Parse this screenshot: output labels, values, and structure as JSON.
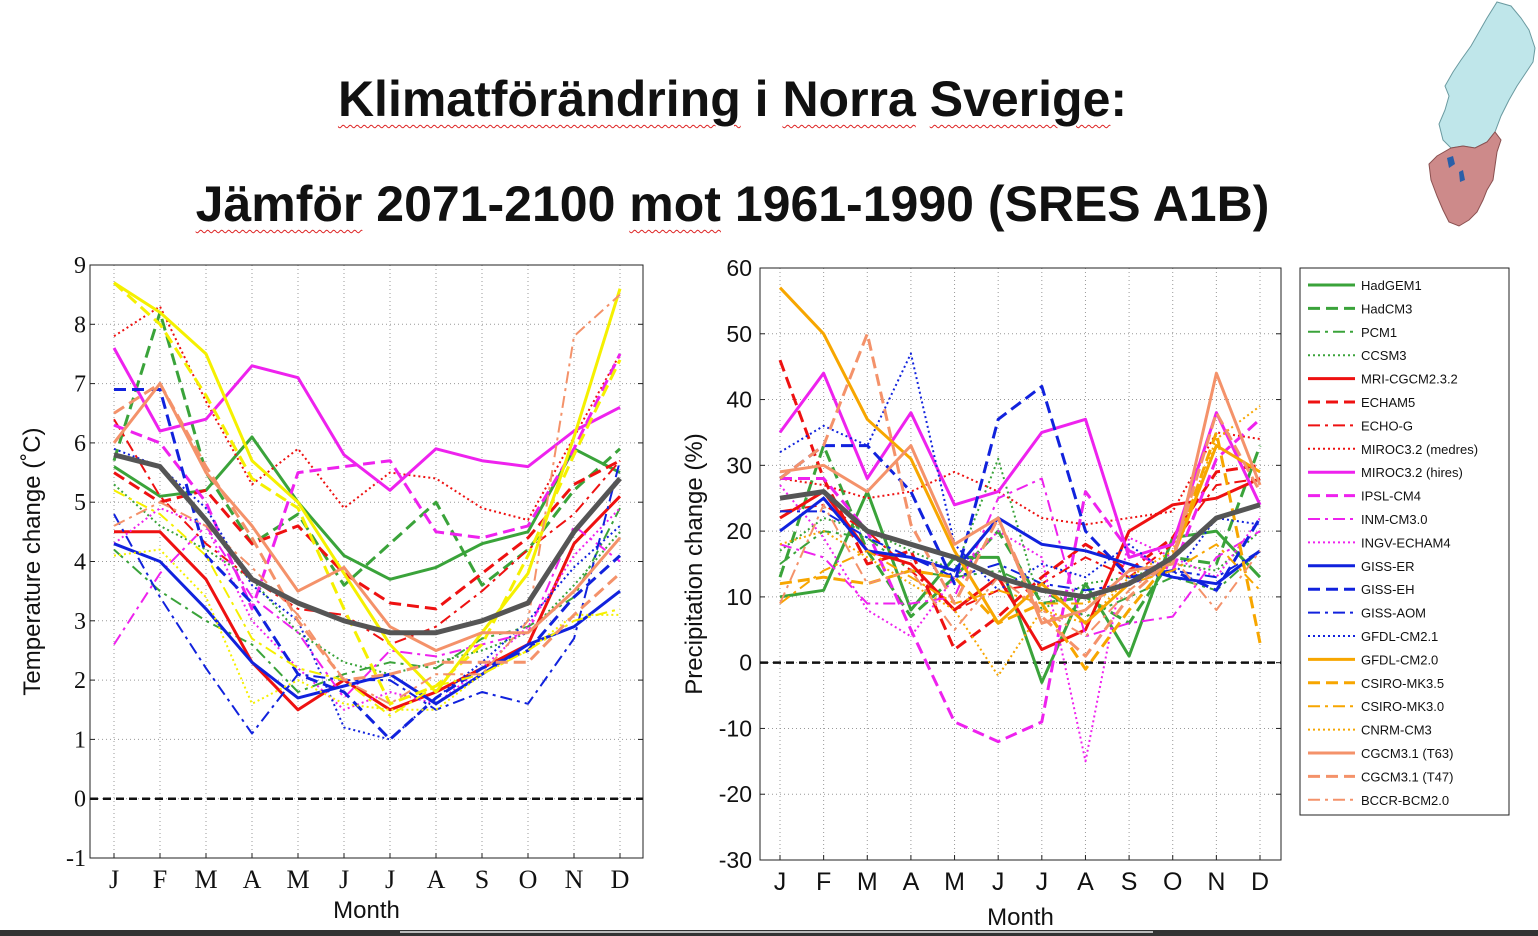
{
  "title": {
    "line1_parts": [
      "Klimatförändring",
      " i ",
      "Norra",
      " ",
      "Sverige",
      ":"
    ],
    "line2_parts": [
      "Jämför",
      " 2071-2100 ",
      "mot",
      " 1961-1990 (SRES A1B)"
    ]
  },
  "colors": {
    "HadGEM1": "#3aa33a",
    "red": "#ee1111",
    "magenta": "#ee22ee",
    "blue": "#1122dd",
    "orange": "#f7a600",
    "salmon": "#f4926a",
    "yellow": "#f5f000",
    "gray": "#555555",
    "map_north": "#bfe6ea",
    "map_south": "#cd8a8a"
  },
  "chart_data": [
    {
      "type": "line",
      "xlabel": "Month",
      "ylabel": "Temperature change (˚C)",
      "categories": [
        "J",
        "F",
        "M",
        "A",
        "M",
        "J",
        "J",
        "A",
        "S",
        "O",
        "N",
        "D"
      ],
      "ylim": [
        -1,
        9
      ],
      "yticks": [
        "-1",
        "0",
        "1",
        "2",
        "3",
        "4",
        "5",
        "6",
        "7",
        "8",
        "9"
      ],
      "grid": true,
      "reference_line": 0,
      "series": [
        {
          "name": "HadGEM1",
          "color": "#3aa33a",
          "dash": "solid",
          "width": 3,
          "values": [
            5.6,
            5.1,
            5.2,
            6.1,
            5.0,
            4.1,
            3.7,
            3.9,
            4.3,
            4.5,
            5.9,
            5.5
          ]
        },
        {
          "name": "HadCM3",
          "color": "#3aa33a",
          "dash": "dashed",
          "width": 3,
          "values": [
            5.7,
            8.2,
            5.5,
            4.3,
            4.8,
            3.6,
            4.3,
            5.0,
            3.6,
            4.2,
            5.2,
            5.9
          ]
        },
        {
          "name": "PCM1",
          "color": "#3aa33a",
          "dash": "dashdot",
          "width": 2,
          "values": [
            4.2,
            3.5,
            3.0,
            2.6,
            1.8,
            2.1,
            2.3,
            2.2,
            2.7,
            2.9,
            3.4,
            4.9
          ]
        },
        {
          "name": "CCSM3",
          "color": "#3aa33a",
          "dash": "dotted",
          "width": 2,
          "values": [
            5.3,
            4.6,
            4.2,
            3.7,
            2.8,
            2.3,
            2.1,
            2.3,
            2.5,
            2.8,
            3.6,
            4.5
          ]
        },
        {
          "name": "MRI-CGCM2.3.2",
          "color": "#ee1111",
          "dash": "solid",
          "width": 3,
          "values": [
            4.5,
            4.5,
            3.7,
            2.3,
            1.5,
            2.0,
            1.5,
            1.8,
            2.2,
            2.6,
            4.3,
            5.1
          ]
        },
        {
          "name": "ECHAM5",
          "color": "#ee1111",
          "dash": "dashed",
          "width": 3,
          "values": [
            5.5,
            5.0,
            5.2,
            4.3,
            4.6,
            3.8,
            3.3,
            3.2,
            3.8,
            4.4,
            5.3,
            5.7
          ]
        },
        {
          "name": "ECHO-G",
          "color": "#ee1111",
          "dash": "dashdot",
          "width": 2,
          "values": [
            6.4,
            5.1,
            4.3,
            3.7,
            3.2,
            3.1,
            2.6,
            2.9,
            3.5,
            4.2,
            4.8,
            5.7
          ]
        },
        {
          "name": "MIROC3.2 (medres)",
          "color": "#ee1111",
          "dash": "dotted",
          "width": 2,
          "values": [
            7.8,
            8.3,
            6.7,
            5.3,
            5.9,
            4.9,
            5.5,
            5.4,
            4.9,
            4.7,
            6.1,
            7.5
          ]
        },
        {
          "name": "MIROC3.2 (hires)",
          "color": "#ee22ee",
          "dash": "solid",
          "width": 3,
          "values": [
            7.6,
            6.2,
            6.4,
            7.3,
            7.1,
            5.8,
            5.2,
            5.9,
            5.7,
            5.6,
            6.2,
            6.6
          ]
        },
        {
          "name": "IPSL-CM4",
          "color": "#ee22ee",
          "dash": "dashed",
          "width": 3,
          "values": [
            6.3,
            6.0,
            5.0,
            3.2,
            5.5,
            5.6,
            5.7,
            4.5,
            4.4,
            4.6,
            5.9,
            7.5
          ]
        },
        {
          "name": "INM-CM3.0",
          "color": "#ee22ee",
          "dash": "dashdot",
          "width": 2,
          "values": [
            2.6,
            3.8,
            4.6,
            3.4,
            2.8,
            1.7,
            2.5,
            2.4,
            2.6,
            2.8,
            4.6,
            4.0
          ]
        },
        {
          "name": "INGV-ECHAM4",
          "color": "#ee22ee",
          "dash": "dotted",
          "width": 2,
          "values": [
            4.3,
            4.9,
            4.6,
            3.0,
            2.2,
            1.5,
            1.8,
            1.6,
            2.2,
            2.9,
            4.1,
            4.9
          ]
        },
        {
          "name": "GISS-ER",
          "color": "#1122dd",
          "dash": "solid",
          "width": 3,
          "values": [
            4.3,
            4.0,
            3.2,
            2.3,
            1.7,
            1.9,
            2.1,
            1.6,
            2.1,
            2.6,
            2.9,
            3.5
          ]
        },
        {
          "name": "GISS-EH",
          "color": "#1122dd",
          "dash": "dashed",
          "width": 3,
          "values": [
            6.9,
            6.9,
            4.1,
            3.3,
            2.1,
            1.8,
            1.0,
            1.7,
            2.2,
            2.5,
            3.4,
            4.1
          ]
        },
        {
          "name": "GISS-AOM",
          "color": "#1122dd",
          "dash": "dashdot",
          "width": 2,
          "values": [
            4.8,
            3.4,
            2.2,
            1.1,
            2.1,
            2.0,
            2.0,
            1.5,
            1.8,
            1.6,
            2.7,
            5.7
          ]
        },
        {
          "name": "GFDL-CM2.1",
          "color": "#1122dd",
          "dash": "dotted",
          "width": 2,
          "values": [
            5.9,
            5.6,
            4.9,
            3.6,
            3.0,
            1.2,
            1.0,
            1.7,
            2.3,
            3.0,
            3.9,
            4.6
          ]
        },
        {
          "name": "GFDL-CM2.0",
          "color": "#f5f000",
          "dash": "solid",
          "width": 3,
          "values": [
            8.7,
            8.2,
            7.5,
            5.7,
            5.0,
            3.8,
            2.6,
            1.8,
            2.8,
            3.8,
            6.1,
            8.6
          ]
        },
        {
          "name": "CSIRO-MK3.5",
          "color": "#f5f000",
          "dash": "dashed",
          "width": 3,
          "values": [
            8.7,
            8.0,
            6.8,
            5.4,
            4.9,
            3.2,
            1.6,
            1.9,
            2.6,
            4.1,
            5.8,
            7.4
          ]
        },
        {
          "name": "CSIRO-MK3.0",
          "color": "#f5f000",
          "dash": "dashdot",
          "width": 2,
          "values": [
            5.2,
            4.8,
            4.1,
            2.7,
            2.2,
            2.0,
            1.4,
            1.9,
            2.1,
            2.5,
            3.0,
            3.2
          ]
        },
        {
          "name": "CNRM-CM3",
          "color": "#f5f000",
          "dash": "dotted",
          "width": 2,
          "values": [
            4.1,
            4.2,
            3.4,
            1.6,
            2.0,
            1.6,
            1.5,
            1.5,
            2.1,
            2.5,
            3.1,
            3.1
          ]
        },
        {
          "name": "CGCM3.1 (T63)",
          "color": "#f4926a",
          "dash": "solid",
          "width": 3,
          "values": [
            6.0,
            7.0,
            5.5,
            4.6,
            3.5,
            3.9,
            2.9,
            2.5,
            2.8,
            2.8,
            3.5,
            4.4
          ]
        },
        {
          "name": "CGCM3.1 (T47)",
          "color": "#f4926a",
          "dash": "dashed",
          "width": 3,
          "values": [
            6.5,
            7.0,
            5.6,
            4.4,
            3.0,
            2.0,
            2.1,
            2.3,
            2.3,
            2.3,
            3.1,
            3.8
          ]
        },
        {
          "name": "BCCR-BCM2.0",
          "color": "#f4926a",
          "dash": "dashdot",
          "width": 2,
          "values": [
            4.6,
            5.0,
            4.6,
            3.9,
            3.1,
            2.0,
            1.6,
            2.1,
            2.1,
            3.0,
            7.8,
            8.5
          ]
        },
        {
          "name": "",
          "color": "#555555",
          "dash": "solid",
          "width": 5,
          "values": [
            5.8,
            5.6,
            4.7,
            3.7,
            3.3,
            3.0,
            2.8,
            2.8,
            3.0,
            3.3,
            4.5,
            5.4
          ]
        }
      ]
    },
    {
      "type": "line",
      "xlabel": "Month",
      "ylabel": "Precipitation change (%)",
      "categories": [
        "J",
        "F",
        "M",
        "A",
        "M",
        "J",
        "J",
        "A",
        "S",
        "O",
        "N",
        "D"
      ],
      "ylim": [
        -30,
        60
      ],
      "yticks": [
        "-30",
        "-20",
        "-10",
        "0",
        "10",
        "20",
        "30",
        "40",
        "50",
        "60"
      ],
      "grid": true,
      "reference_line": 0,
      "legend_position": "right",
      "series": [
        {
          "name": "HadGEM1",
          "color": "#3aa33a",
          "dash": "solid",
          "width": 3,
          "values": [
            10,
            11,
            26,
            8,
            16,
            16,
            -3,
            12,
            1,
            19,
            20,
            13
          ]
        },
        {
          "name": "HadCM3",
          "color": "#3aa33a",
          "dash": "dashed",
          "width": 3,
          "values": [
            13,
            33,
            17,
            7,
            13,
            20,
            9,
            10,
            6,
            16,
            15,
            33
          ]
        },
        {
          "name": "PCM1",
          "color": "#3aa33a",
          "dash": "dashdot",
          "width": 2,
          "values": [
            15,
            20,
            19,
            14,
            13,
            14,
            11,
            7,
            10,
            13,
            11,
            17
          ]
        },
        {
          "name": "CCSM3",
          "color": "#3aa33a",
          "dash": "dotted",
          "width": 2,
          "values": [
            17,
            22,
            20,
            17,
            14,
            31,
            8,
            12,
            13,
            15,
            14,
            20
          ]
        },
        {
          "name": "MRI-CGCM2.3.2",
          "color": "#ee1111",
          "dash": "solid",
          "width": 3,
          "values": [
            22,
            26,
            17,
            15,
            8,
            13,
            2,
            5,
            20,
            24,
            25,
            28
          ]
        },
        {
          "name": "ECHAM5",
          "color": "#ee1111",
          "dash": "dashed",
          "width": 3,
          "values": [
            46,
            28,
            15,
            17,
            2,
            7,
            13,
            18,
            14,
            19,
            29,
            30
          ]
        },
        {
          "name": "ECHO-G",
          "color": "#ee1111",
          "dash": "dashdot",
          "width": 2,
          "values": [
            23,
            24,
            20,
            14,
            8,
            11,
            12,
            16,
            13,
            18,
            27,
            28
          ]
        },
        {
          "name": "MIROC3.2 (medres)",
          "color": "#ee1111",
          "dash": "dotted",
          "width": 2,
          "values": [
            28,
            27,
            25,
            26,
            29,
            26,
            22,
            21,
            22,
            23,
            35,
            34
          ]
        },
        {
          "name": "MIROC3.2 (hires)",
          "color": "#ee22ee",
          "dash": "solid",
          "width": 3,
          "values": [
            35,
            44,
            28,
            38,
            24,
            26,
            35,
            37,
            16,
            18,
            38,
            24
          ]
        },
        {
          "name": "IPSL-CM4",
          "color": "#ee22ee",
          "dash": "dashed",
          "width": 3,
          "values": [
            28,
            28,
            20,
            5,
            -9,
            -12,
            -9,
            26,
            17,
            14,
            31,
            37
          ]
        },
        {
          "name": "INM-CM3.0",
          "color": "#ee22ee",
          "dash": "dashdot",
          "width": 2,
          "values": [
            18,
            16,
            9,
            9,
            10,
            25,
            28,
            4,
            6,
            7,
            16,
            20
          ]
        },
        {
          "name": "INGV-ECHAM4",
          "color": "#ee22ee",
          "dash": "dotted",
          "width": 2,
          "values": [
            27,
            19,
            8,
            4,
            13,
            20,
            16,
            -15,
            19,
            16,
            13,
            22
          ]
        },
        {
          "name": "GISS-ER",
          "color": "#1122dd",
          "dash": "solid",
          "width": 3,
          "values": [
            20,
            25,
            17,
            16,
            14,
            22,
            18,
            17,
            15,
            13,
            12,
            17
          ]
        },
        {
          "name": "GISS-EH",
          "color": "#1122dd",
          "dash": "dashed",
          "width": 3,
          "values": [
            28,
            33,
            33,
            26,
            12,
            37,
            42,
            20,
            13,
            14,
            11,
            22
          ]
        },
        {
          "name": "GISS-AOM",
          "color": "#1122dd",
          "dash": "dashdot",
          "width": 2,
          "values": [
            23,
            23,
            19,
            16,
            13,
            15,
            12,
            11,
            12,
            14,
            13,
            17
          ]
        },
        {
          "name": "GFDL-CM2.1",
          "color": "#1122dd",
          "dash": "dotted",
          "width": 2,
          "values": [
            32,
            36,
            33,
            47,
            18,
            11,
            15,
            13,
            18,
            13,
            22,
            21
          ]
        },
        {
          "name": "GFDL-CM2.0",
          "color": "#f7a600",
          "dash": "solid",
          "width": 3,
          "values": [
            57,
            50,
            37,
            31,
            17,
            6,
            12,
            6,
            12,
            16,
            33,
            29
          ]
        },
        {
          "name": "CSIRO-MK3.5",
          "color": "#f7a600",
          "dash": "dashed",
          "width": 3,
          "values": [
            12,
            13,
            12,
            14,
            13,
            6,
            9,
            -1,
            8,
            16,
            35,
            3
          ]
        },
        {
          "name": "CSIRO-MK3.0",
          "color": "#f7a600",
          "dash": "dashdot",
          "width": 2,
          "values": [
            9,
            14,
            17,
            13,
            9,
            11,
            9,
            9,
            12,
            14,
            18,
            11
          ]
        },
        {
          "name": "CNRM-CM3",
          "color": "#f7a600",
          "dash": "dotted",
          "width": 2,
          "values": [
            18,
            20,
            16,
            12,
            8,
            -2,
            8,
            6,
            13,
            17,
            34,
            39
          ]
        },
        {
          "name": "CGCM3.1 (T63)",
          "color": "#f4926a",
          "dash": "solid",
          "width": 3,
          "values": [
            29,
            30,
            26,
            33,
            18,
            22,
            6,
            8,
            14,
            15,
            44,
            27
          ]
        },
        {
          "name": "CGCM3.1 (T47)",
          "color": "#f4926a",
          "dash": "dashed",
          "width": 3,
          "values": [
            28,
            33,
            50,
            21,
            9,
            22,
            7,
            1,
            10,
            16,
            38,
            26
          ]
        },
        {
          "name": "BCCR-BCM2.0",
          "color": "#f4926a",
          "dash": "dashdot",
          "width": 2,
          "values": [
            9,
            24,
            12,
            14,
            5,
            13,
            8,
            4,
            11,
            16,
            8,
            17
          ]
        },
        {
          "name": "",
          "color": "#555555",
          "dash": "solid",
          "width": 5,
          "values": [
            25,
            26,
            20,
            18,
            16,
            13,
            11,
            10,
            12,
            16,
            22,
            24
          ]
        }
      ]
    }
  ]
}
